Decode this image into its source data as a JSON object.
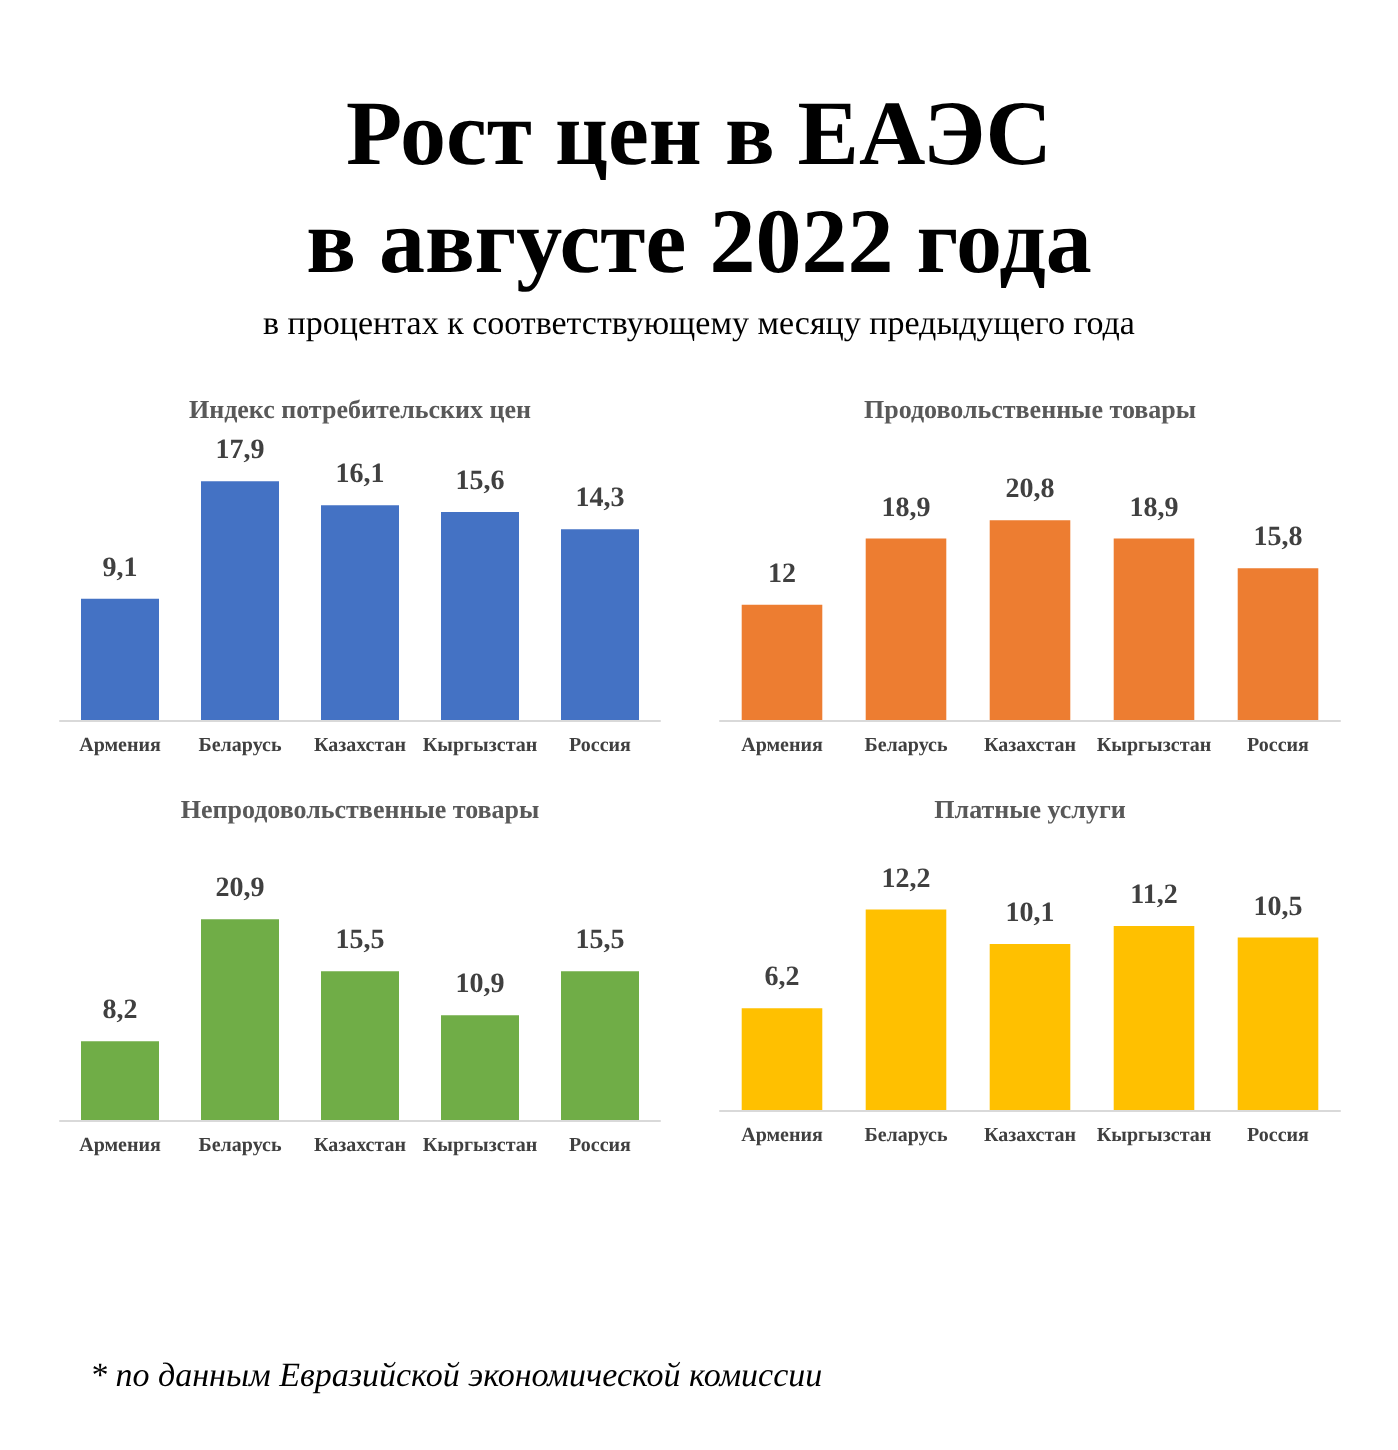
{
  "chart_data": [
    {
      "type": "other",
      "title": "Рост цен в ЕАЭС\nв августе 2022 года",
      "subtitle": "в процентах к соответствующему месяцу предыдущего года"
    },
    {
      "type": "bar",
      "title": "Индекс потребительских цен",
      "categories": [
        "Армения",
        "Беларусь",
        "Казахстан",
        "Кыргызстан",
        "Россия"
      ],
      "values": [
        9.1,
        17.9,
        16.1,
        15.6,
        14.3
      ],
      "color": "#4472c4",
      "value_labels": [
        "9,1",
        "17,9",
        "16,1",
        "15,6",
        "14,3"
      ]
    },
    {
      "type": "bar",
      "title": "Продовольственные товары",
      "categories": [
        "Армения",
        "Беларусь",
        "Казахстан",
        "Кыргызстан",
        "Россия"
      ],
      "values": [
        12,
        18.9,
        20.8,
        18.9,
        15.8
      ],
      "color": "#ed7d31",
      "value_labels": [
        "12",
        "18,9",
        "20,8",
        "18,9",
        "15,8"
      ]
    },
    {
      "type": "bar",
      "title": "Непродовольственные товары",
      "categories": [
        "Армения",
        "Беларусь",
        "Казахстан",
        "Кыргызстан",
        "Россия"
      ],
      "values": [
        8.2,
        20.9,
        15.5,
        10.9,
        15.5
      ],
      "color": "#70ad47",
      "value_labels": [
        "8,2",
        "20,9",
        "15,5",
        "10,9",
        "15,5"
      ]
    },
    {
      "type": "bar",
      "title": "Платные услуги",
      "categories": [
        "Армения",
        "Беларусь",
        "Казахстан",
        "Кыргызстан",
        "Россия"
      ],
      "values": [
        6.2,
        12.2,
        10.1,
        11.2,
        10.5
      ],
      "color": "#ffc000",
      "value_labels": [
        "6,2",
        "12,2",
        "10,1",
        "11,2",
        "10,5"
      ]
    },
    {
      "type": "other",
      "annotations": [
        "* по данным Евразийской экономической комиссии"
      ]
    }
  ]
}
